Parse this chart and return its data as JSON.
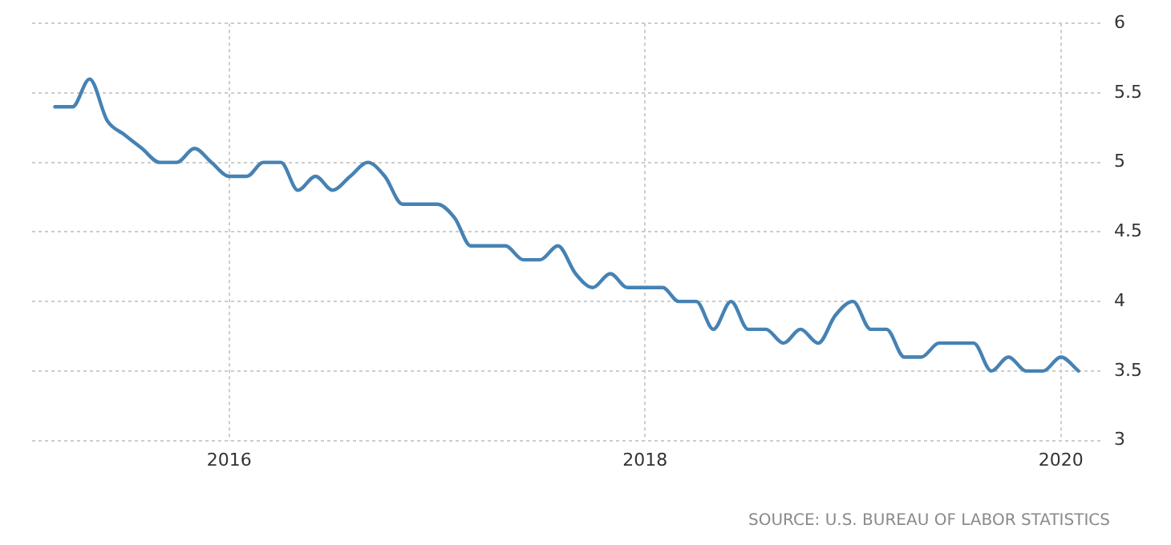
{
  "chart_data": {
    "type": "line",
    "x": [
      "2015-03",
      "2015-04",
      "2015-05",
      "2015-06",
      "2015-07",
      "2015-08",
      "2015-09",
      "2015-10",
      "2015-11",
      "2015-12",
      "2016-01",
      "2016-02",
      "2016-03",
      "2016-04",
      "2016-05",
      "2016-06",
      "2016-07",
      "2016-08",
      "2016-09",
      "2016-10",
      "2016-11",
      "2016-12",
      "2017-01",
      "2017-02",
      "2017-03",
      "2017-04",
      "2017-05",
      "2017-06",
      "2017-07",
      "2017-08",
      "2017-09",
      "2017-10",
      "2017-11",
      "2017-12",
      "2018-01",
      "2018-02",
      "2018-03",
      "2018-04",
      "2018-05",
      "2018-06",
      "2018-07",
      "2018-08",
      "2018-09",
      "2018-10",
      "2018-11",
      "2018-12",
      "2019-01",
      "2019-02",
      "2019-03",
      "2019-04",
      "2019-05",
      "2019-06",
      "2019-07",
      "2019-08",
      "2019-09",
      "2019-10",
      "2019-11",
      "2019-12",
      "2020-01",
      "2020-02"
    ],
    "series": [
      {
        "color": "#4682b4",
        "values": [
          5.4,
          5.4,
          5.6,
          5.3,
          5.2,
          5.1,
          5.0,
          5.0,
          5.1,
          5.0,
          4.9,
          4.9,
          5.0,
          5.0,
          4.8,
          4.9,
          4.8,
          4.9,
          5.0,
          4.9,
          4.7,
          4.7,
          4.7,
          4.6,
          4.4,
          4.4,
          4.4,
          4.3,
          4.3,
          4.4,
          4.2,
          4.1,
          4.2,
          4.1,
          4.1,
          4.1,
          4.0,
          4.0,
          3.8,
          4.0,
          3.8,
          3.8,
          3.7,
          3.8,
          3.7,
          3.9,
          4.0,
          3.8,
          3.8,
          3.6,
          3.6,
          3.7,
          3.7,
          3.7,
          3.5,
          3.6,
          3.5,
          3.5,
          3.6,
          3.5
        ]
      }
    ],
    "xlim": [
      "2015-01-20",
      "2020-03-12"
    ],
    "xticks": [
      "2016",
      "2018",
      "2020"
    ],
    "ylim": [
      3,
      6
    ],
    "yticks": [
      3,
      3.5,
      4,
      4.5,
      5,
      5.5,
      6
    ],
    "grid": true,
    "marker": "none",
    "line_style": "solid",
    "annotations": [
      "SOURCE: U.S. BUREAU OF LABOR STATISTICS"
    ]
  }
}
